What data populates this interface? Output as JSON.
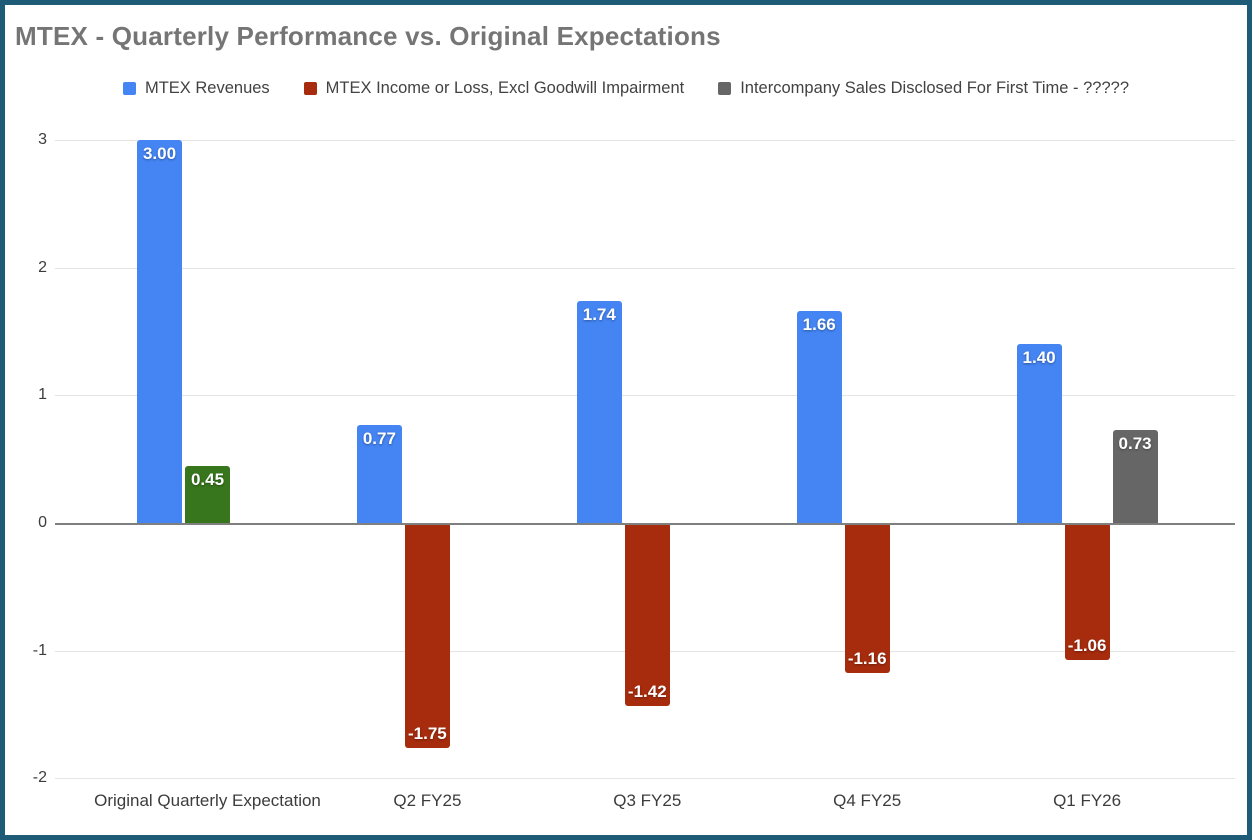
{
  "chart_data": {
    "type": "bar",
    "title": "MTEX - Quarterly Performance vs. Original Expectations",
    "categories": [
      "Original Quarterly Expectation",
      "Q2 FY25",
      "Q3 FY25",
      "Q4 FY25",
      "Q1 FY26"
    ],
    "series": [
      {
        "name": "MTEX Revenues",
        "color": "#4484F3",
        "values": [
          3.0,
          0.77,
          1.74,
          1.66,
          1.4
        ]
      },
      {
        "name": "MTEX Income or Loss, Excl Goodwill Impairment",
        "color": "#A62C0D",
        "values": [
          0.45,
          -1.75,
          -1.42,
          -1.16,
          -1.06
        ],
        "point_colors": [
          "#38761D",
          "#A62C0D",
          "#A62C0D",
          "#A62C0D",
          "#A62C0D"
        ]
      },
      {
        "name": "Intercompany Sales Disclosed For First Time - ?????",
        "color": "#666666",
        "values": [
          null,
          null,
          null,
          null,
          0.73
        ]
      }
    ],
    "yticks": [
      3,
      2,
      1,
      0,
      -1,
      -2
    ],
    "ylim": [
      -2,
      3
    ],
    "grid": true,
    "legend_position": "top",
    "data_labels_decimals": 2,
    "colors": {
      "frame_border": "#1E5B76",
      "title_text": "#757575",
      "legend_text": "#424242",
      "axis_text": "#3c3c3c",
      "gridline": "#e4e4e4",
      "zero_line": "#7f7f7f",
      "bar_label_text": "#ffffff"
    }
  }
}
